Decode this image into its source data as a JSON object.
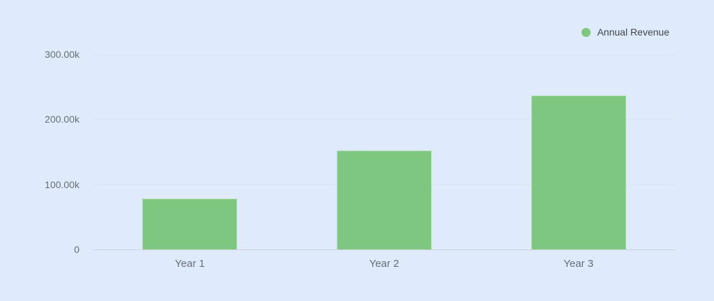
{
  "chart_data": {
    "type": "bar",
    "title": "",
    "xlabel": "",
    "ylabel": "",
    "categories": [
      "Year 1",
      "Year 2",
      "Year 3"
    ],
    "series": [
      {
        "name": "Annual Revenue",
        "values": [
          78000,
          152000,
          237000
        ],
        "color": "#7ec780"
      }
    ],
    "y_ticks": [
      {
        "label": "300.00k",
        "value": 300000
      },
      {
        "label": "200.00k",
        "value": 200000
      },
      {
        "label": "100.00k",
        "value": 100000
      },
      {
        "label": "0",
        "value": 0
      }
    ],
    "ylim": [
      0,
      300000
    ],
    "grid": true,
    "legend_position": "top-right"
  },
  "colors": {
    "background": "#dfeafc",
    "bar": "#7ec780",
    "gridline": "#dde2e9",
    "axis_line": "#ccd2d9",
    "tick_label": "#696f77",
    "legend_text": "#40454a"
  }
}
